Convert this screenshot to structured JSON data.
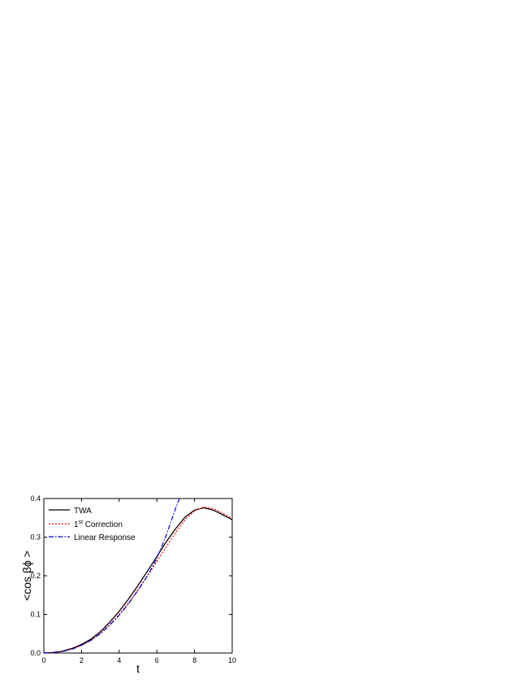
{
  "chart_data": {
    "type": "line",
    "xlabel": "t",
    "ylabel": "<cos βϕ >",
    "xlim": [
      0,
      10
    ],
    "ylim": [
      0,
      0.4
    ],
    "x_ticks": [
      "0",
      "2",
      "4",
      "6",
      "8",
      "10"
    ],
    "y_ticks": [
      "0.0",
      "0.1",
      "0.2",
      "0.3",
      "0.4"
    ],
    "grid": false,
    "legend_position": "top-left",
    "series": [
      {
        "name": "TWA",
        "style": "solid",
        "color": "#000000",
        "x": [
          0,
          0.5,
          1,
          1.5,
          2,
          2.5,
          3,
          3.5,
          4,
          4.5,
          5,
          5.5,
          6,
          6.5,
          7,
          7.5,
          8,
          8.5,
          9,
          9.5,
          10
        ],
        "y": [
          0.0,
          0.001,
          0.005,
          0.012,
          0.022,
          0.036,
          0.055,
          0.08,
          0.108,
          0.14,
          0.175,
          0.212,
          0.25,
          0.288,
          0.322,
          0.352,
          0.37,
          0.376,
          0.37,
          0.358,
          0.345
        ]
      },
      {
        "name": "1st Correction",
        "label_base": "1",
        "label_sup": "st",
        "label_rest": " Correction",
        "style": "dotted",
        "color": "#ff0000",
        "x": [
          0,
          0.5,
          1,
          1.5,
          2,
          2.5,
          3,
          3.5,
          4,
          4.5,
          5,
          5.5,
          6,
          6.5,
          7,
          7.5,
          8,
          8.5,
          9,
          9.5,
          10
        ],
        "y": [
          0.0,
          0.001,
          0.004,
          0.011,
          0.02,
          0.033,
          0.051,
          0.074,
          0.1,
          0.13,
          0.164,
          0.2,
          0.237,
          0.275,
          0.312,
          0.345,
          0.368,
          0.378,
          0.374,
          0.362,
          0.348
        ]
      },
      {
        "name": "Linear Response",
        "style": "dash-dot",
        "color": "#0000cc",
        "x": [
          0,
          1,
          1.5,
          2,
          2.5,
          3,
          3.5,
          4,
          4.5,
          5,
          5.5,
          6,
          6.5,
          7,
          7.2
        ],
        "y": [
          0.0,
          0.004,
          0.01,
          0.02,
          0.033,
          0.05,
          0.072,
          0.098,
          0.128,
          0.162,
          0.2,
          0.245,
          0.305,
          0.375,
          0.4
        ]
      }
    ]
  }
}
